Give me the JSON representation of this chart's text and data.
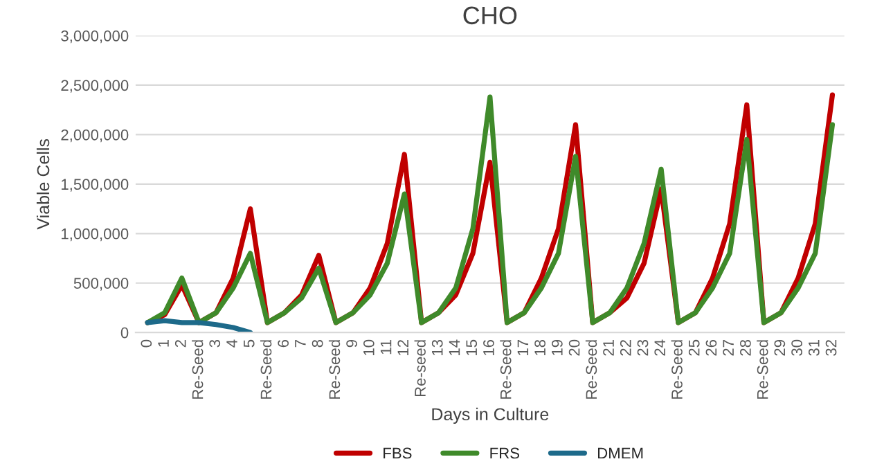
{
  "chart_data": {
    "type": "line",
    "title": "CHO",
    "xlabel": "Days in Culture",
    "ylabel": "Viable Cells",
    "categories": [
      "0",
      "1",
      "2",
      "Re-Seed",
      "3",
      "4",
      "5",
      "Re-Seed",
      "6",
      "7",
      "8",
      "Re-Seed",
      "9",
      "10",
      "11",
      "12",
      "Re-seed",
      "13",
      "14",
      "15",
      "16",
      "Re-Seed",
      "17",
      "18",
      "19",
      "20",
      "Re-Seed",
      "21",
      "22",
      "23",
      "24",
      "Re-Seed",
      "25",
      "26",
      "27",
      "28",
      "Re-Seed",
      "29",
      "30",
      "31",
      "32"
    ],
    "series": [
      {
        "name": "FBS",
        "color": "#c00000",
        "values": [
          100000,
          180000,
          480000,
          100000,
          200000,
          550000,
          1250000,
          100000,
          200000,
          380000,
          780000,
          100000,
          200000,
          450000,
          900000,
          1800000,
          100000,
          200000,
          380000,
          800000,
          1720000,
          100000,
          200000,
          550000,
          1050000,
          2100000,
          100000,
          200000,
          350000,
          700000,
          1450000,
          100000,
          200000,
          550000,
          1100000,
          2300000,
          100000,
          200000,
          550000,
          1100000,
          2400000
        ]
      },
      {
        "name": "FRS",
        "color": "#3f8a2a",
        "values": [
          100000,
          200000,
          550000,
          100000,
          200000,
          450000,
          800000,
          100000,
          200000,
          350000,
          650000,
          100000,
          200000,
          380000,
          700000,
          1400000,
          100000,
          200000,
          450000,
          1050000,
          2380000,
          100000,
          200000,
          450000,
          800000,
          1780000,
          100000,
          200000,
          450000,
          900000,
          1650000,
          100000,
          200000,
          450000,
          800000,
          1950000,
          100000,
          200000,
          450000,
          800000,
          2100000
        ]
      },
      {
        "name": "DMEM",
        "color": "#1d6a8a",
        "values": [
          100000,
          120000,
          100000,
          100000,
          80000,
          50000,
          0,
          null,
          null,
          null,
          null,
          null,
          null,
          null,
          null,
          null,
          null,
          null,
          null,
          null,
          null,
          null,
          null,
          null,
          null,
          null,
          null,
          null,
          null,
          null,
          null,
          null,
          null,
          null,
          null,
          null,
          null,
          null,
          null,
          null,
          null
        ]
      }
    ],
    "ylim": [
      0,
      3000000
    ],
    "yticks": [
      {
        "value": 0,
        "label": "0"
      },
      {
        "value": 500000,
        "label": "500,000"
      },
      {
        "value": 1000000,
        "label": "1,000,000"
      },
      {
        "value": 1500000,
        "label": "1,500,000"
      },
      {
        "value": 2000000,
        "label": "2,000,000"
      },
      {
        "value": 2500000,
        "label": "2,500,000"
      },
      {
        "value": 3000000,
        "label": "3,000,000"
      }
    ],
    "grid": "y",
    "legend": "bottom",
    "marker": "none",
    "line_style": "solid"
  }
}
